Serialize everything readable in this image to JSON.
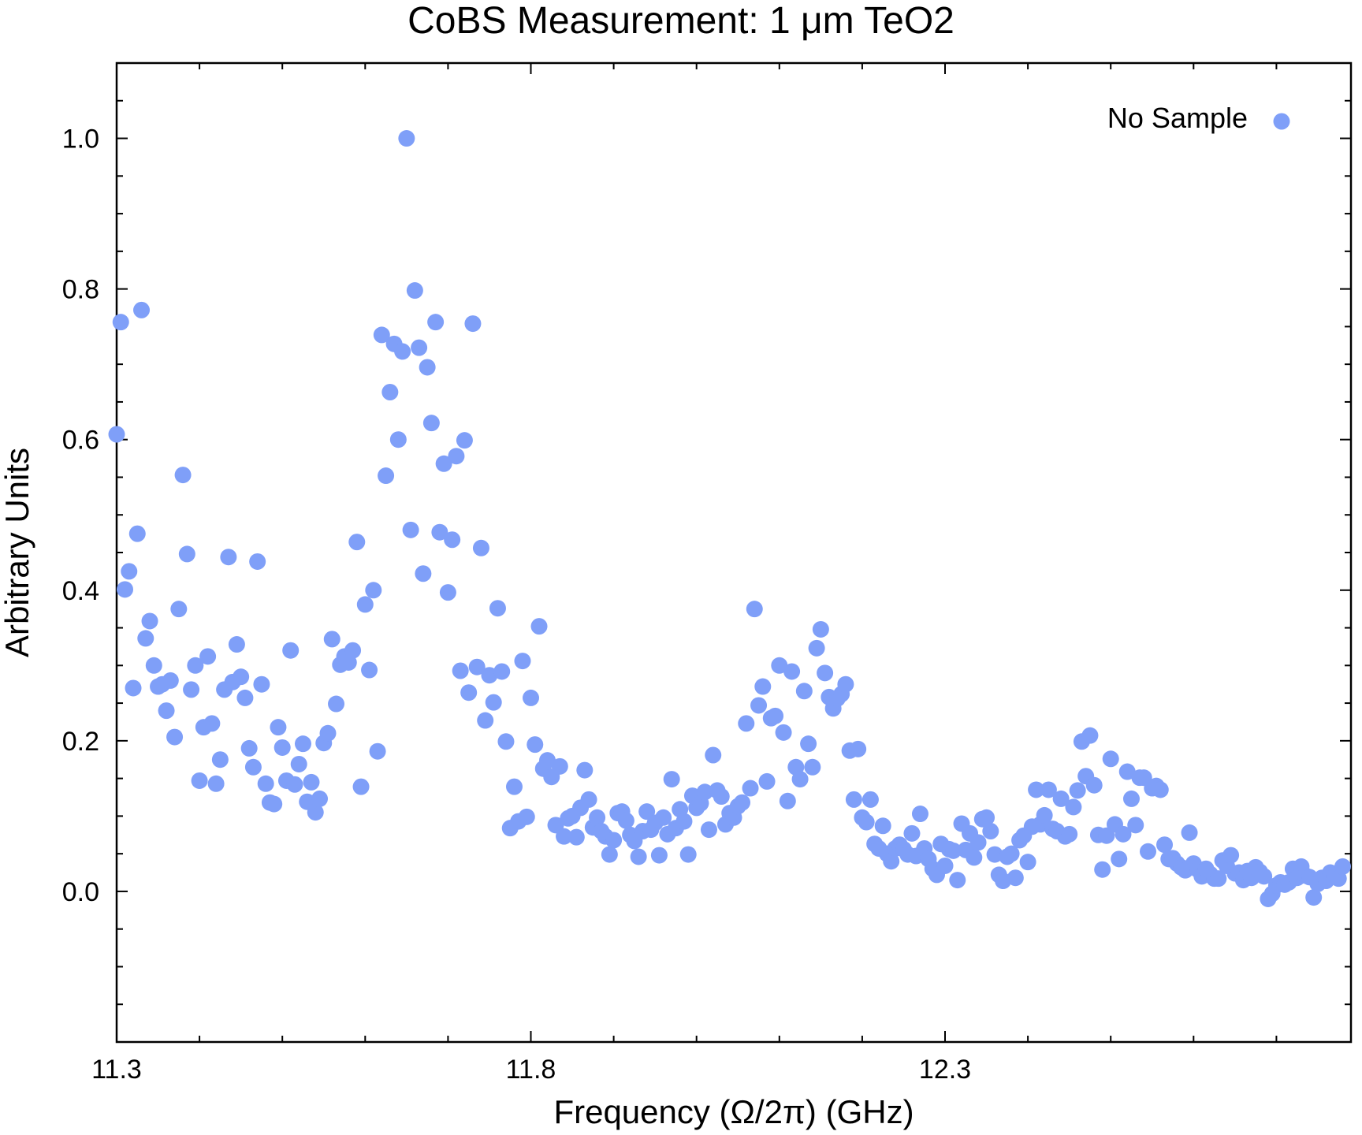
{
  "chart_data": {
    "type": "scatter",
    "title": "CoBS Measurement: 1 μm TeO2",
    "xlabel": "Frequency (Ω/2π) (GHz)",
    "ylabel": "Arbitrary Units",
    "xlim": [
      11.3,
      12.79
    ],
    "ylim": [
      -0.2,
      1.1
    ],
    "x_ticks": [
      11.3,
      11.8,
      12.3
    ],
    "x_tick_labels": [
      "11.3",
      "11.8",
      "12.3"
    ],
    "y_ticks": [
      0.0,
      0.2,
      0.4,
      0.6,
      0.8,
      1.0
    ],
    "y_tick_labels": [
      "0.0",
      "0.2",
      "0.4",
      "0.6",
      "0.8",
      "1.0"
    ],
    "grid": false,
    "legend_position": "top-right",
    "series": [
      {
        "name": "No Sample",
        "color": "#7f9ff8",
        "points": [
          [
            11.3,
            0.607
          ],
          [
            11.305,
            0.756
          ],
          [
            11.31,
            0.401
          ],
          [
            11.315,
            0.425
          ],
          [
            11.32,
            0.27
          ],
          [
            11.325,
            0.475
          ],
          [
            11.33,
            0.772
          ],
          [
            11.335,
            0.336
          ],
          [
            11.34,
            0.359
          ],
          [
            11.345,
            0.3
          ],
          [
            11.35,
            0.272
          ],
          [
            11.355,
            0.275
          ],
          [
            11.36,
            0.24
          ],
          [
            11.365,
            0.28
          ],
          [
            11.37,
            0.205
          ],
          [
            11.375,
            0.375
          ],
          [
            11.38,
            0.553
          ],
          [
            11.385,
            0.448
          ],
          [
            11.39,
            0.268
          ],
          [
            11.395,
            0.3
          ],
          [
            11.4,
            0.147
          ],
          [
            11.405,
            0.218
          ],
          [
            11.41,
            0.312
          ],
          [
            11.415,
            0.223
          ],
          [
            11.42,
            0.143
          ],
          [
            11.425,
            0.175
          ],
          [
            11.43,
            0.268
          ],
          [
            11.435,
            0.444
          ],
          [
            11.44,
            0.278
          ],
          [
            11.445,
            0.328
          ],
          [
            11.45,
            0.285
          ],
          [
            11.455,
            0.257
          ],
          [
            11.46,
            0.19
          ],
          [
            11.465,
            0.165
          ],
          [
            11.47,
            0.438
          ],
          [
            11.475,
            0.275
          ],
          [
            11.48,
            0.143
          ],
          [
            11.485,
            0.118
          ],
          [
            11.49,
            0.116
          ],
          [
            11.495,
            0.218
          ],
          [
            11.5,
            0.191
          ],
          [
            11.505,
            0.147
          ],
          [
            11.51,
            0.32
          ],
          [
            11.515,
            0.142
          ],
          [
            11.52,
            0.169
          ],
          [
            11.525,
            0.196
          ],
          [
            11.53,
            0.119
          ],
          [
            11.535,
            0.145
          ],
          [
            11.54,
            0.105
          ],
          [
            11.545,
            0.123
          ],
          [
            11.55,
            0.197
          ],
          [
            11.555,
            0.21
          ],
          [
            11.56,
            0.335
          ],
          [
            11.565,
            0.249
          ],
          [
            11.57,
            0.301
          ],
          [
            11.575,
            0.312
          ],
          [
            11.58,
            0.304
          ],
          [
            11.585,
            0.32
          ],
          [
            11.59,
            0.464
          ],
          [
            11.595,
            0.139
          ],
          [
            11.6,
            0.381
          ],
          [
            11.605,
            0.294
          ],
          [
            11.61,
            0.4
          ],
          [
            11.615,
            0.186
          ],
          [
            11.62,
            0.739
          ],
          [
            11.625,
            0.552
          ],
          [
            11.63,
            0.663
          ],
          [
            11.635,
            0.727
          ],
          [
            11.64,
            0.6
          ],
          [
            11.645,
            0.717
          ],
          [
            11.65,
            1.0
          ],
          [
            11.655,
            0.48
          ],
          [
            11.66,
            0.798
          ],
          [
            11.665,
            0.722
          ],
          [
            11.67,
            0.422
          ],
          [
            11.675,
            0.696
          ],
          [
            11.68,
            0.622
          ],
          [
            11.685,
            0.756
          ],
          [
            11.69,
            0.477
          ],
          [
            11.695,
            0.568
          ],
          [
            11.7,
            0.397
          ],
          [
            11.705,
            0.467
          ],
          [
            11.71,
            0.578
          ],
          [
            11.715,
            0.293
          ],
          [
            11.72,
            0.599
          ],
          [
            11.725,
            0.264
          ],
          [
            11.73,
            0.754
          ],
          [
            11.735,
            0.298
          ],
          [
            11.74,
            0.456
          ],
          [
            11.745,
            0.227
          ],
          [
            11.75,
            0.287
          ],
          [
            11.755,
            0.251
          ],
          [
            11.76,
            0.376
          ],
          [
            11.765,
            0.292
          ],
          [
            11.77,
            0.199
          ],
          [
            11.775,
            0.084
          ],
          [
            11.78,
            0.139
          ],
          [
            11.785,
            0.093
          ],
          [
            11.79,
            0.306
          ],
          [
            11.795,
            0.099
          ],
          [
            11.8,
            0.257
          ],
          [
            11.805,
            0.195
          ],
          [
            11.81,
            0.352
          ],
          [
            11.815,
            0.163
          ],
          [
            11.82,
            0.174
          ],
          [
            11.825,
            0.152
          ],
          [
            11.83,
            0.088
          ],
          [
            11.835,
            0.166
          ],
          [
            11.84,
            0.073
          ],
          [
            11.845,
            0.097
          ],
          [
            11.85,
            0.1
          ],
          [
            11.855,
            0.072
          ],
          [
            11.86,
            0.111
          ],
          [
            11.865,
            0.161
          ],
          [
            11.87,
            0.122
          ],
          [
            11.875,
            0.085
          ],
          [
            11.88,
            0.098
          ],
          [
            11.885,
            0.08
          ],
          [
            11.89,
            0.073
          ],
          [
            11.895,
            0.049
          ],
          [
            11.9,
            0.068
          ],
          [
            11.905,
            0.104
          ],
          [
            11.91,
            0.106
          ],
          [
            11.915,
            0.094
          ],
          [
            11.92,
            0.075
          ],
          [
            11.925,
            0.067
          ],
          [
            11.93,
            0.046
          ],
          [
            11.935,
            0.08
          ],
          [
            11.94,
            0.106
          ],
          [
            11.945,
            0.082
          ],
          [
            11.95,
            0.091
          ],
          [
            11.955,
            0.048
          ],
          [
            11.96,
            0.098
          ],
          [
            11.965,
            0.076
          ],
          [
            11.97,
            0.149
          ],
          [
            11.975,
            0.084
          ],
          [
            11.98,
            0.109
          ],
          [
            11.985,
            0.093
          ],
          [
            11.99,
            0.049
          ],
          [
            11.995,
            0.127
          ],
          [
            12.0,
            0.111
          ],
          [
            12.005,
            0.117
          ],
          [
            12.01,
            0.132
          ],
          [
            12.015,
            0.082
          ],
          [
            12.02,
            0.181
          ],
          [
            12.025,
            0.134
          ],
          [
            12.03,
            0.126
          ],
          [
            12.035,
            0.089
          ],
          [
            12.04,
            0.104
          ],
          [
            12.045,
            0.098
          ],
          [
            12.05,
            0.113
          ],
          [
            12.055,
            0.118
          ],
          [
            12.06,
            0.223
          ],
          [
            12.065,
            0.137
          ],
          [
            12.07,
            0.375
          ],
          [
            12.075,
            0.247
          ],
          [
            12.08,
            0.272
          ],
          [
            12.085,
            0.146
          ],
          [
            12.09,
            0.23
          ],
          [
            12.095,
            0.233
          ],
          [
            12.1,
            0.3
          ],
          [
            12.105,
            0.211
          ],
          [
            12.11,
            0.12
          ],
          [
            12.115,
            0.292
          ],
          [
            12.12,
            0.165
          ],
          [
            12.125,
            0.149
          ],
          [
            12.13,
            0.266
          ],
          [
            12.135,
            0.196
          ],
          [
            12.14,
            0.165
          ],
          [
            12.145,
            0.323
          ],
          [
            12.15,
            0.348
          ],
          [
            12.155,
            0.29
          ],
          [
            12.16,
            0.258
          ],
          [
            12.165,
            0.243
          ],
          [
            12.17,
            0.256
          ],
          [
            12.175,
            0.262
          ],
          [
            12.18,
            0.275
          ],
          [
            12.185,
            0.187
          ],
          [
            12.19,
            0.122
          ],
          [
            12.195,
            0.189
          ],
          [
            12.2,
            0.098
          ],
          [
            12.205,
            0.092
          ],
          [
            12.21,
            0.122
          ],
          [
            12.215,
            0.063
          ],
          [
            12.22,
            0.057
          ],
          [
            12.225,
            0.087
          ],
          [
            12.23,
            0.05
          ],
          [
            12.235,
            0.04
          ],
          [
            12.24,
            0.057
          ],
          [
            12.245,
            0.062
          ],
          [
            12.25,
            0.056
          ],
          [
            12.255,
            0.049
          ],
          [
            12.26,
            0.077
          ],
          [
            12.265,
            0.047
          ],
          [
            12.27,
            0.103
          ],
          [
            12.275,
            0.057
          ],
          [
            12.28,
            0.043
          ],
          [
            12.285,
            0.03
          ],
          [
            12.29,
            0.022
          ],
          [
            12.295,
            0.063
          ],
          [
            12.3,
            0.034
          ],
          [
            12.305,
            0.056
          ],
          [
            12.31,
            0.054
          ],
          [
            12.315,
            0.015
          ],
          [
            12.32,
            0.09
          ],
          [
            12.325,
            0.055
          ],
          [
            12.33,
            0.077
          ],
          [
            12.335,
            0.045
          ],
          [
            12.34,
            0.065
          ],
          [
            12.345,
            0.096
          ],
          [
            12.35,
            0.098
          ],
          [
            12.355,
            0.08
          ],
          [
            12.36,
            0.049
          ],
          [
            12.365,
            0.022
          ],
          [
            12.37,
            0.014
          ],
          [
            12.375,
            0.046
          ],
          [
            12.38,
            0.05
          ],
          [
            12.385,
            0.018
          ],
          [
            12.39,
            0.068
          ],
          [
            12.395,
            0.074
          ],
          [
            12.4,
            0.039
          ],
          [
            12.405,
            0.086
          ],
          [
            12.41,
            0.135
          ],
          [
            12.415,
            0.089
          ],
          [
            12.42,
            0.101
          ],
          [
            12.425,
            0.135
          ],
          [
            12.43,
            0.083
          ],
          [
            12.435,
            0.08
          ],
          [
            12.44,
            0.123
          ],
          [
            12.445,
            0.073
          ],
          [
            12.45,
            0.076
          ],
          [
            12.455,
            0.112
          ],
          [
            12.46,
            0.134
          ],
          [
            12.465,
            0.199
          ],
          [
            12.47,
            0.153
          ],
          [
            12.475,
            0.207
          ],
          [
            12.48,
            0.141
          ],
          [
            12.485,
            0.075
          ],
          [
            12.49,
            0.029
          ],
          [
            12.495,
            0.074
          ],
          [
            12.5,
            0.176
          ],
          [
            12.505,
            0.089
          ],
          [
            12.51,
            0.043
          ],
          [
            12.515,
            0.076
          ],
          [
            12.52,
            0.159
          ],
          [
            12.525,
            0.123
          ],
          [
            12.53,
            0.088
          ],
          [
            12.535,
            0.151
          ],
          [
            12.54,
            0.151
          ],
          [
            12.545,
            0.053
          ],
          [
            12.55,
            0.137
          ],
          [
            12.555,
            0.14
          ],
          [
            12.56,
            0.135
          ],
          [
            12.565,
            0.062
          ],
          [
            12.57,
            0.043
          ],
          [
            12.575,
            0.044
          ],
          [
            12.58,
            0.037
          ],
          [
            12.585,
            0.032
          ],
          [
            12.59,
            0.028
          ],
          [
            12.595,
            0.078
          ],
          [
            12.6,
            0.037
          ],
          [
            12.605,
            0.029
          ],
          [
            12.61,
            0.02
          ],
          [
            12.615,
            0.03
          ],
          [
            12.62,
            0.023
          ],
          [
            12.625,
            0.017
          ],
          [
            12.63,
            0.017
          ],
          [
            12.635,
            0.041
          ],
          [
            12.64,
            0.034
          ],
          [
            12.645,
            0.048
          ],
          [
            12.65,
            0.024
          ],
          [
            12.655,
            0.025
          ],
          [
            12.66,
            0.015
          ],
          [
            12.665,
            0.027
          ],
          [
            12.67,
            0.018
          ],
          [
            12.675,
            0.032
          ],
          [
            12.68,
            0.026
          ],
          [
            12.685,
            0.02
          ],
          [
            12.69,
            -0.01
          ],
          [
            12.695,
            -0.003
          ],
          [
            12.7,
            0.008
          ],
          [
            12.705,
            0.012
          ],
          [
            12.71,
            0.009
          ],
          [
            12.715,
            0.012
          ],
          [
            12.72,
            0.03
          ],
          [
            12.725,
            0.018
          ],
          [
            12.73,
            0.033
          ],
          [
            12.735,
            0.021
          ],
          [
            12.74,
            0.019
          ],
          [
            12.745,
            -0.008
          ],
          [
            12.75,
            0.01
          ],
          [
            12.755,
            0.018
          ],
          [
            12.76,
            0.014
          ],
          [
            12.765,
            0.025
          ],
          [
            12.77,
            0.02
          ],
          [
            12.775,
            0.017
          ],
          [
            12.78,
            0.033
          ]
        ]
      }
    ]
  }
}
